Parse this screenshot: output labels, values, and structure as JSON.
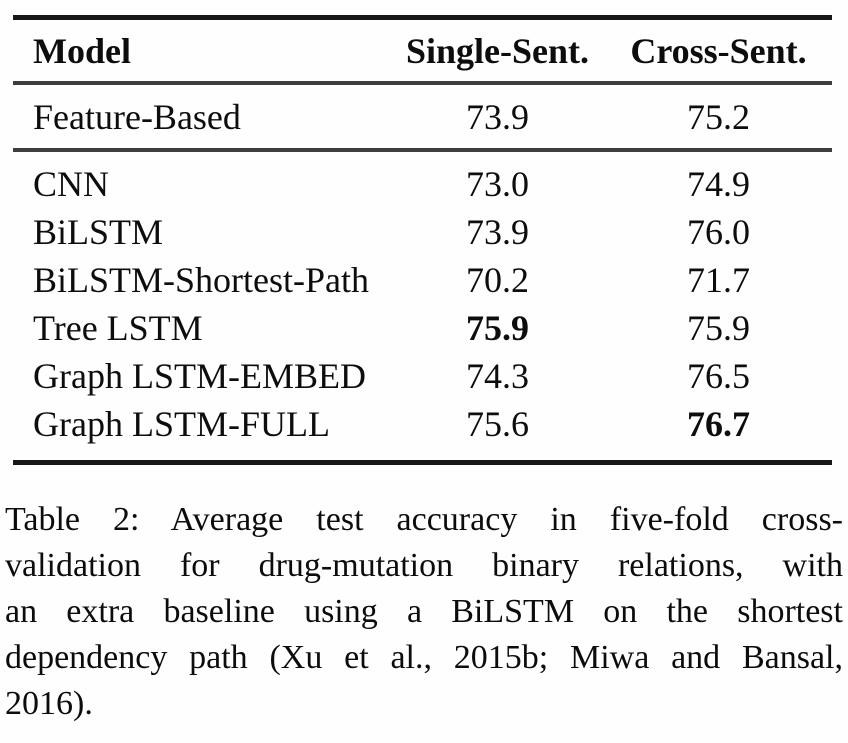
{
  "table": {
    "columns": [
      "Model",
      "Single-Sent.",
      "Cross-Sent."
    ],
    "rows": [
      {
        "model": "Feature-Based",
        "single": "73.9",
        "cross": "75.2",
        "bold": null,
        "group": "baseline"
      },
      {
        "model": "CNN",
        "single": "73.0",
        "cross": "74.9",
        "bold": null,
        "group": "neural"
      },
      {
        "model": "BiLSTM",
        "single": "73.9",
        "cross": "76.0",
        "bold": null,
        "group": "neural"
      },
      {
        "model": "BiLSTM-Shortest-Path",
        "single": "70.2",
        "cross": "71.7",
        "bold": null,
        "group": "neural"
      },
      {
        "model": "Tree LSTM",
        "single": "75.9",
        "cross": "75.9",
        "bold": "single",
        "group": "neural"
      },
      {
        "model": "Graph LSTM-EMBED",
        "single": "74.3",
        "cross": "76.5",
        "bold": null,
        "group": "neural"
      },
      {
        "model": "Graph LSTM-FULL",
        "single": "75.6",
        "cross": "76.7",
        "bold": "cross",
        "group": "neural"
      }
    ]
  },
  "caption": {
    "label": "Table 2:",
    "lines": [
      "Table 2: Average test accuracy in five-fold cross-",
      "validation for drug-mutation binary relations, with",
      "an extra baseline using a BiLSTM on the shortest",
      "dependency path (Xu et al., 2015b; Miwa and Bansal,",
      "2016)."
    ],
    "full_text": "Table 2: Average test accuracy in five-fold cross-validation for drug-mutation binary relations, with an extra baseline using a BiLSTM on the shortest dependency path (Xu et al., 2015b; Miwa and Bansal, 2016)."
  },
  "colors": {
    "text": "#0d0d0d",
    "rule_heavy": "#181818",
    "rule_light": "#3e3e3e",
    "background": "#fefefe"
  }
}
